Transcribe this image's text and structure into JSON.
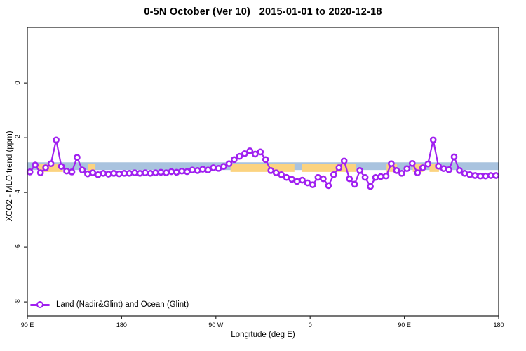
{
  "chart_data": {
    "type": "line",
    "title": "0-5N October (Ver 10)   2015-01-01 to 2020-12-18",
    "xlabel": "Longitude (deg E)",
    "ylabel": "XCO2 - MLO trend (ppm)",
    "xlim": [
      90,
      540
    ],
    "ylim": [
      -8.51,
      2.03
    ],
    "grid": "off",
    "x_ticks": [
      {
        "value": 90,
        "label": "90 E"
      },
      {
        "value": 180,
        "label": "180"
      },
      {
        "value": 270,
        "label": "90 W"
      },
      {
        "value": 360,
        "label": "0"
      },
      {
        "value": 450,
        "label": "90 E"
      },
      {
        "value": 540,
        "label": "180"
      }
    ],
    "y_ticks": [
      {
        "value": 0,
        "label": "0"
      },
      {
        "value": -2,
        "label": "-2"
      },
      {
        "value": -4,
        "label": "-4"
      },
      {
        "value": -6,
        "label": "-6"
      },
      {
        "value": -8,
        "label": "-8"
      }
    ],
    "bands": [
      {
        "name": "ocean-band",
        "color": "#A9C3DF",
        "y": [
          -3.18,
          -2.9
        ],
        "segments": [
          [
            90,
            540
          ]
        ]
      },
      {
        "name": "land-band",
        "color": "#FBD380",
        "y": [
          -3.25,
          -2.95
        ],
        "segments": [
          [
            100,
            124
          ],
          [
            148,
            155
          ],
          [
            284,
            345
          ],
          [
            352,
            404
          ],
          [
            433,
            443
          ],
          [
            458,
            468
          ],
          [
            474,
            483
          ]
        ]
      }
    ],
    "legend": {
      "position": "bottom-left",
      "entries": [
        {
          "label": "Land (Nadir&Glint) and Ocean (Glint)",
          "color": "#A020F0",
          "marker": "open-circle"
        }
      ]
    },
    "series": [
      {
        "name": "Land (Nadir&Glint) and Ocean (Glint)",
        "color": "#A020F0",
        "marker_fill": "#FFFFFF",
        "x_start": 92.5,
        "x_step": 5,
        "values": [
          -3.25,
          -3.0,
          -3.28,
          -3.1,
          -2.95,
          -2.08,
          -3.05,
          -3.22,
          -3.25,
          -2.72,
          -3.18,
          -3.32,
          -3.28,
          -3.35,
          -3.3,
          -3.33,
          -3.3,
          -3.32,
          -3.3,
          -3.3,
          -3.28,
          -3.3,
          -3.28,
          -3.3,
          -3.28,
          -3.26,
          -3.28,
          -3.24,
          -3.26,
          -3.22,
          -3.24,
          -3.18,
          -3.2,
          -3.15,
          -3.18,
          -3.1,
          -3.12,
          -3.05,
          -2.95,
          -2.8,
          -2.68,
          -2.58,
          -2.48,
          -2.6,
          -2.52,
          -2.8,
          -3.2,
          -3.28,
          -3.35,
          -3.45,
          -3.52,
          -3.6,
          -3.55,
          -3.65,
          -3.72,
          -3.45,
          -3.5,
          -3.75,
          -3.35,
          -3.1,
          -2.85,
          -3.5,
          -3.7,
          -3.2,
          -3.45,
          -3.78,
          -3.45,
          -3.42,
          -3.4,
          -2.95,
          -3.2,
          -3.3,
          -3.13,
          -2.94,
          -3.28,
          -3.1,
          -2.96,
          -2.08,
          -3.04,
          -3.13,
          -3.17,
          -2.7,
          -3.2,
          -3.3,
          -3.35,
          -3.38,
          -3.4,
          -3.4,
          -3.38,
          -3.38
        ]
      }
    ]
  }
}
